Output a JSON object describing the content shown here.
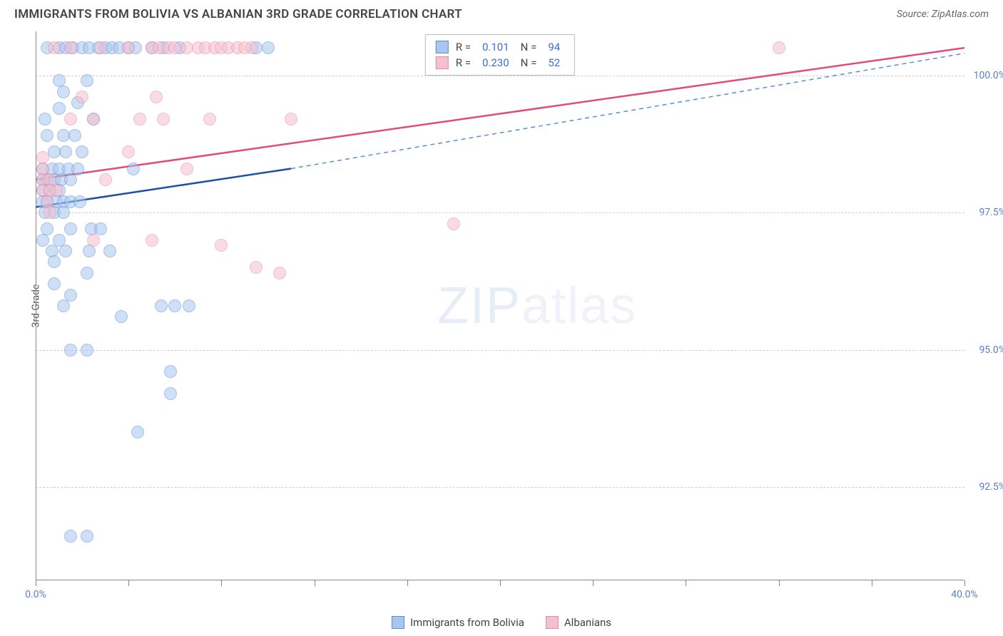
{
  "header": {
    "title": "IMMIGRANTS FROM BOLIVIA VS ALBANIAN 3RD GRADE CORRELATION CHART",
    "source": "Source: ZipAtlas.com"
  },
  "watermark": {
    "zip": "ZIP",
    "atlas": "atlas"
  },
  "chart": {
    "type": "scatter",
    "ylabel": "3rd Grade",
    "xlim": [
      0,
      40
    ],
    "ylim": [
      90.8,
      100.8
    ],
    "xticks": [
      {
        "v": 0,
        "label": "0.0%"
      },
      {
        "v": 4,
        "label": ""
      },
      {
        "v": 8,
        "label": ""
      },
      {
        "v": 12,
        "label": ""
      },
      {
        "v": 16,
        "label": ""
      },
      {
        "v": 20,
        "label": ""
      },
      {
        "v": 24,
        "label": ""
      },
      {
        "v": 28,
        "label": ""
      },
      {
        "v": 32,
        "label": ""
      },
      {
        "v": 36,
        "label": ""
      },
      {
        "v": 40,
        "label": "40.0%"
      }
    ],
    "yticks": [
      {
        "v": 92.5,
        "label": "92.5%"
      },
      {
        "v": 95.0,
        "label": "95.0%"
      },
      {
        "v": 97.5,
        "label": "97.5%"
      },
      {
        "v": 100.0,
        "label": "100.0%"
      }
    ],
    "grid_color": "#d0d0d0",
    "axis_color": "#888888",
    "background_color": "#ffffff",
    "marker_radius": 9,
    "marker_opacity": 0.55,
    "series": [
      {
        "name": "Immigrants from Bolivia",
        "fill_color": "#a8c6f0",
        "stroke_color": "#5a8fd8",
        "line_color": "#1f4fa8",
        "R": "0.101",
        "N": "94",
        "trend": {
          "x1": 0,
          "y1": 97.6,
          "x2": 11,
          "y2": 98.3,
          "dash_to_x": 40,
          "dash_to_y": 100.4
        },
        "points": [
          [
            0.5,
            100.5
          ],
          [
            1.0,
            100.5
          ],
          [
            1.3,
            100.5
          ],
          [
            1.6,
            100.5
          ],
          [
            2.0,
            100.5
          ],
          [
            2.3,
            100.5
          ],
          [
            2.7,
            100.5
          ],
          [
            3.0,
            100.5
          ],
          [
            3.3,
            100.5
          ],
          [
            3.6,
            100.5
          ],
          [
            4.0,
            100.5
          ],
          [
            4.3,
            100.5
          ],
          [
            5.0,
            100.5
          ],
          [
            5.5,
            100.5
          ],
          [
            6.2,
            100.5
          ],
          [
            9.5,
            100.5
          ],
          [
            10.0,
            100.5
          ],
          [
            1.0,
            99.9
          ],
          [
            2.2,
            99.9
          ],
          [
            1.2,
            99.7
          ],
          [
            1.8,
            99.5
          ],
          [
            1.0,
            99.4
          ],
          [
            0.4,
            99.2
          ],
          [
            2.5,
            99.2
          ],
          [
            0.5,
            98.9
          ],
          [
            1.2,
            98.9
          ],
          [
            1.7,
            98.9
          ],
          [
            0.8,
            98.6
          ],
          [
            1.3,
            98.6
          ],
          [
            2.0,
            98.6
          ],
          [
            0.3,
            98.3
          ],
          [
            0.7,
            98.3
          ],
          [
            1.0,
            98.3
          ],
          [
            1.4,
            98.3
          ],
          [
            1.8,
            98.3
          ],
          [
            4.2,
            98.3
          ],
          [
            0.3,
            98.1
          ],
          [
            0.5,
            98.1
          ],
          [
            0.8,
            98.1
          ],
          [
            1.1,
            98.1
          ],
          [
            1.5,
            98.1
          ],
          [
            0.3,
            97.9
          ],
          [
            0.6,
            97.9
          ],
          [
            1.0,
            97.9
          ],
          [
            0.3,
            97.7
          ],
          [
            0.5,
            97.7
          ],
          [
            0.9,
            97.7
          ],
          [
            1.2,
            97.7
          ],
          [
            1.5,
            97.7
          ],
          [
            1.9,
            97.7
          ],
          [
            0.4,
            97.5
          ],
          [
            0.8,
            97.5
          ],
          [
            1.2,
            97.5
          ],
          [
            0.5,
            97.2
          ],
          [
            1.5,
            97.2
          ],
          [
            2.4,
            97.2
          ],
          [
            2.8,
            97.2
          ],
          [
            0.3,
            97.0
          ],
          [
            1.0,
            97.0
          ],
          [
            0.7,
            96.8
          ],
          [
            1.3,
            96.8
          ],
          [
            2.3,
            96.8
          ],
          [
            3.2,
            96.8
          ],
          [
            0.8,
            96.6
          ],
          [
            2.2,
            96.4
          ],
          [
            0.8,
            96.2
          ],
          [
            1.5,
            96.0
          ],
          [
            1.2,
            95.8
          ],
          [
            5.4,
            95.8
          ],
          [
            6.0,
            95.8
          ],
          [
            6.6,
            95.8
          ],
          [
            3.7,
            95.6
          ],
          [
            1.5,
            95.0
          ],
          [
            2.2,
            95.0
          ],
          [
            5.8,
            94.6
          ],
          [
            5.8,
            94.2
          ],
          [
            4.4,
            93.5
          ],
          [
            1.5,
            91.6
          ],
          [
            2.2,
            91.6
          ]
        ]
      },
      {
        "name": "Albanians",
        "fill_color": "#f5c0cd",
        "stroke_color": "#e88aa3",
        "line_color": "#e14d7a",
        "R": "0.230",
        "N": "52",
        "trend": {
          "x1": 0,
          "y1": 98.1,
          "x2": 40,
          "y2": 100.5
        },
        "points": [
          [
            0.8,
            100.5
          ],
          [
            1.5,
            100.5
          ],
          [
            2.8,
            100.5
          ],
          [
            4.0,
            100.5
          ],
          [
            5.0,
            100.5
          ],
          [
            5.3,
            100.5
          ],
          [
            5.7,
            100.5
          ],
          [
            6.0,
            100.5
          ],
          [
            6.5,
            100.5
          ],
          [
            7.0,
            100.5
          ],
          [
            7.3,
            100.5
          ],
          [
            7.7,
            100.5
          ],
          [
            8.0,
            100.5
          ],
          [
            8.3,
            100.5
          ],
          [
            8.7,
            100.5
          ],
          [
            9.0,
            100.5
          ],
          [
            9.3,
            100.5
          ],
          [
            32.0,
            100.5
          ],
          [
            2.0,
            99.6
          ],
          [
            5.2,
            99.6
          ],
          [
            1.5,
            99.2
          ],
          [
            2.5,
            99.2
          ],
          [
            4.5,
            99.2
          ],
          [
            5.5,
            99.2
          ],
          [
            7.5,
            99.2
          ],
          [
            11.0,
            99.2
          ],
          [
            0.3,
            98.5
          ],
          [
            4.0,
            98.6
          ],
          [
            0.3,
            98.3
          ],
          [
            6.5,
            98.3
          ],
          [
            0.3,
            98.1
          ],
          [
            0.6,
            98.1
          ],
          [
            3.0,
            98.1
          ],
          [
            0.3,
            97.9
          ],
          [
            0.6,
            97.9
          ],
          [
            0.9,
            97.9
          ],
          [
            0.5,
            97.7
          ],
          [
            0.6,
            97.5
          ],
          [
            18.0,
            97.3
          ],
          [
            2.5,
            97.0
          ],
          [
            5.0,
            97.0
          ],
          [
            8.0,
            96.9
          ],
          [
            9.5,
            96.5
          ],
          [
            10.5,
            96.4
          ]
        ]
      }
    ],
    "stat_legend": {
      "R_label": "R  =",
      "N_label": "N  ="
    },
    "bottom_legend": {
      "items": [
        {
          "label": "Immigrants from Bolivia",
          "fill": "#a8c6f0",
          "stroke": "#5a8fd8"
        },
        {
          "label": "Albanians",
          "fill": "#f5c0cd",
          "stroke": "#e88aa3"
        }
      ]
    }
  }
}
